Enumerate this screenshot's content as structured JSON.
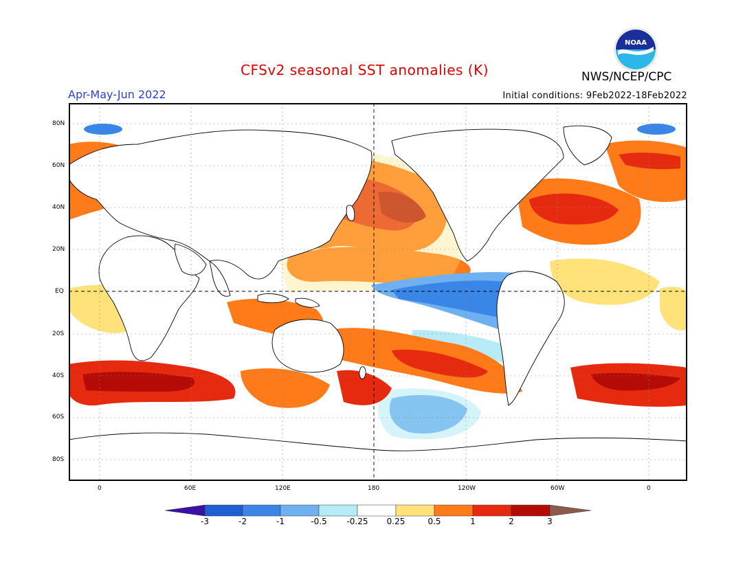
{
  "header": {
    "title": "CFSv2 seasonal SST anomalies (K)",
    "period": "Apr-May-Jun 2022",
    "initial_conditions": "Initial conditions: 9Feb2022-18Feb2022",
    "agency": "NWS/NCEP/CPC",
    "logo_text": "NOAA"
  },
  "map": {
    "lat_labels": [
      "80N",
      "60N",
      "40N",
      "20N",
      "EQ",
      "20S",
      "40S",
      "60S",
      "80S"
    ],
    "lon_labels": [
      "0",
      "60E",
      "120E",
      "180",
      "120W",
      "60W",
      "0"
    ],
    "land_color": "#ffffff",
    "ocean_neutral_color": "#ffffff"
  },
  "colorbar": {
    "levels": [
      "-3",
      "-2",
      "-1",
      "-0.5",
      "-0.25",
      "0.25",
      "0.5",
      "1",
      "2",
      "3"
    ],
    "colors": [
      "#3a10a8",
      "#1f5fd0",
      "#3a86e6",
      "#6fb0f0",
      "#b7ecf7",
      "#ffffff",
      "#ffe37a",
      "#ff7b1a",
      "#e52a10",
      "#b40b06",
      "#8b5a4a"
    ]
  }
}
